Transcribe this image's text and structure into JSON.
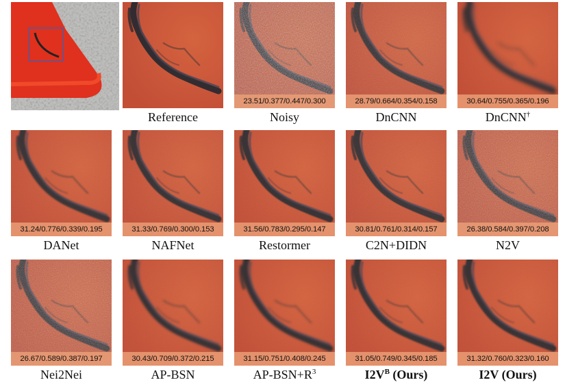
{
  "panels": [
    {
      "caption": "Reference",
      "metrics": "",
      "noise": 0,
      "blur": 0
    },
    {
      "caption": "Noisy",
      "metrics": "23.51/0.377/0.447/0.300",
      "noise": 1.0,
      "blur": 0
    },
    {
      "caption": "DnCNN",
      "metrics": "28.79/0.664/0.354/0.158",
      "noise": 0.35,
      "blur": 0.6
    },
    {
      "caption": "DnCNN",
      "caption_sup": "†",
      "metrics": "30.64/0.755/0.365/0.196",
      "noise": 0.05,
      "blur": 3
    },
    {
      "caption": "DANet",
      "metrics": "31.24/0.776/0.339/0.195",
      "noise": 0.15,
      "blur": 1
    },
    {
      "caption": "NAFNet",
      "metrics": "31.33/0.769/0.300/0.153",
      "noise": 0.15,
      "blur": 0.8
    },
    {
      "caption": "Restormer",
      "metrics": "31.56/0.783/0.295/0.147",
      "noise": 0.12,
      "blur": 0.8
    },
    {
      "caption": "C2N+DIDN",
      "metrics": "30.81/0.761/0.314/0.157",
      "noise": 0.2,
      "blur": 0.6
    },
    {
      "caption": "N2V",
      "metrics": "26.38/0.584/0.397/0.208",
      "noise": 0.7,
      "blur": 0.6
    },
    {
      "caption": "Nei2Nei",
      "metrics": "26.67/0.589/0.387/0.197",
      "noise": 0.7,
      "blur": 0.5
    },
    {
      "caption": "AP-BSN",
      "metrics": "30.43/0.709/0.372/0.215",
      "noise": 0.1,
      "blur": 1.6
    },
    {
      "caption": "AP-BSN+R",
      "caption_sup": "3",
      "metrics": "31.15/0.751/0.408/0.245",
      "noise": 0.08,
      "blur": 1.6
    },
    {
      "caption": "I2V",
      "caption_sup": "B",
      "caption_tail": " (Ours)",
      "bold": true,
      "metrics": "31.05/0.749/0.345/0.185",
      "noise": 0.1,
      "blur": 1
    },
    {
      "caption": "I2V (Ours)",
      "bold": true,
      "metrics": "31.32/0.760/0.323/0.160",
      "noise": 0.1,
      "blur": 1
    }
  ],
  "colors": {
    "orange": "#c8553a",
    "dark": "#2a2a2e",
    "band": "#eba078"
  }
}
